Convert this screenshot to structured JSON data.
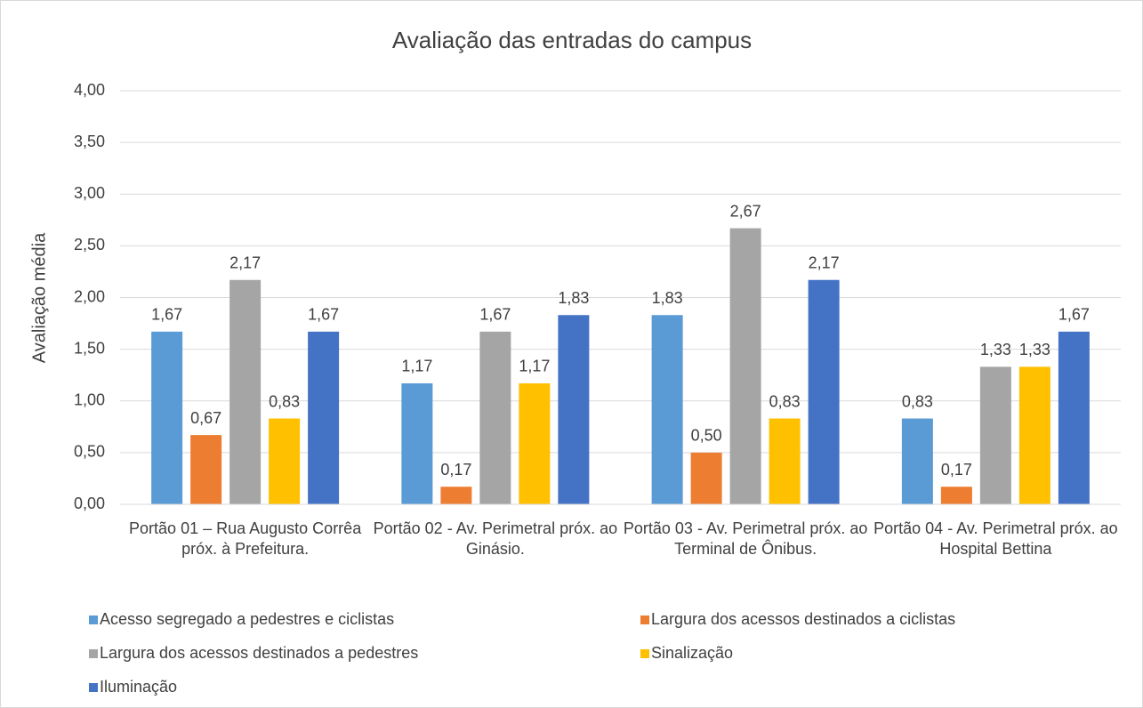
{
  "chart_data": {
    "type": "bar",
    "title": "Avaliação das entradas do campus",
    "y_label": "Avaliação média",
    "categories": [
      "Portão 01 – Rua Augusto Corrêa próx. à Prefeitura.",
      "Portão 02 - Av. Perimetral próx. ao Ginásio.",
      "Portão 03 - Av. Perimetral próx. ao Terminal de Ônibus.",
      "Portão 04 - Av. Perimetral próx. ao Hospital Bettina"
    ],
    "series": [
      {
        "name": "Acesso segregado a pedestres e ciclistas",
        "color": "#5b9bd5",
        "values": [
          1.67,
          1.17,
          1.83,
          0.83
        ],
        "value_labels": [
          "1,67",
          "1,17",
          "1,83",
          "0,83"
        ]
      },
      {
        "name": "Largura dos acessos destinados a ciclistas",
        "color": "#ed7d31",
        "values": [
          0.67,
          0.17,
          0.5,
          0.17
        ],
        "value_labels": [
          "0,67",
          "0,17",
          "0,50",
          "0,17"
        ]
      },
      {
        "name": "Largura dos acessos destinados a pedestres",
        "color": "#a5a5a5",
        "values": [
          2.17,
          1.67,
          2.67,
          1.33
        ],
        "value_labels": [
          "2,17",
          "1,67",
          "2,67",
          "1,33"
        ]
      },
      {
        "name": "Sinalização",
        "color": "#ffc000",
        "values": [
          0.83,
          1.17,
          0.83,
          1.33
        ],
        "value_labels": [
          "0,83",
          "1,17",
          "0,83",
          "1,33"
        ]
      },
      {
        "name": "Iluminação",
        "color": "#4472c4",
        "values": [
          1.67,
          1.83,
          2.17,
          1.67
        ],
        "value_labels": [
          "1,67",
          "1,83",
          "2,17",
          "1,67"
        ]
      }
    ],
    "ylim": [
      0,
      4
    ],
    "yticks": [
      {
        "value": 0,
        "label": "0,00"
      },
      {
        "value": 0.5,
        "label": "0,50"
      },
      {
        "value": 1,
        "label": "1,00"
      },
      {
        "value": 1.5,
        "label": "1,50"
      },
      {
        "value": 2,
        "label": "2,00"
      },
      {
        "value": 2.5,
        "label": "2,50"
      },
      {
        "value": 3,
        "label": "3,00"
      },
      {
        "value": 3.5,
        "label": "3,50"
      },
      {
        "value": 4,
        "label": "4,00"
      }
    ],
    "grid": true,
    "legend": "bottom"
  }
}
